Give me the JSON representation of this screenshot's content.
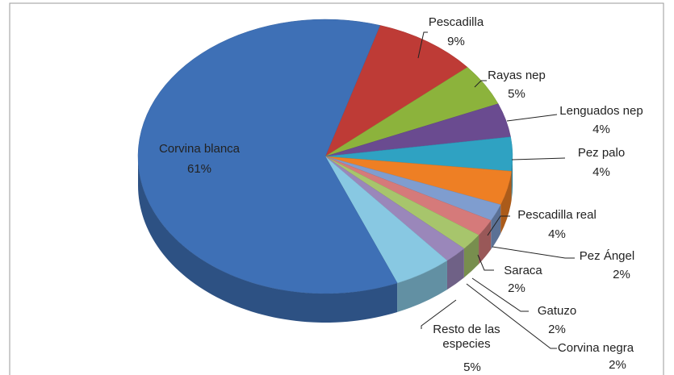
{
  "chart_data": {
    "type": "pie3d",
    "categories": [
      "Pescadilla",
      "Rayas nep",
      "Lenguados nep",
      "Pez palo",
      "Pescadilla real",
      "Pez Ángel",
      "Saraca",
      "Gatuzo",
      "Corvina negra",
      "Resto de las especies",
      "Corvina blanca"
    ],
    "values": [
      9,
      5,
      4,
      4,
      4,
      2,
      2,
      2,
      2,
      5,
      61
    ],
    "value_labels": [
      "9%",
      "5%",
      "4%",
      "4%",
      "4%",
      "2%",
      "2%",
      "2%",
      "2%",
      "5%",
      "61%"
    ],
    "colors": [
      "#be3b36",
      "#8cb33c",
      "#6a4b90",
      "#2fa2c2",
      "#ee7f24",
      "#7f9dcf",
      "#d57a7a",
      "#a7c56c",
      "#9a87ba",
      "#88c8e2",
      "#3e70b6"
    ]
  }
}
